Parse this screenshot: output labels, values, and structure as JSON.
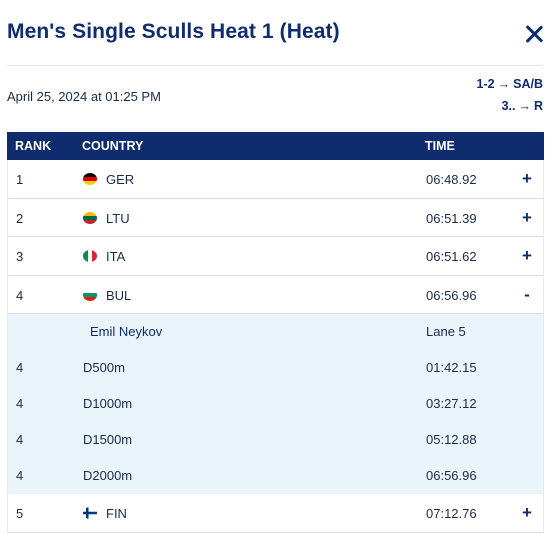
{
  "header": {
    "title": "Men's Single Sculls Heat 1 (Heat)",
    "date": "April 25, 2024 at 01:25 PM",
    "progression": [
      {
        "from": "1-2",
        "arrow": "→",
        "to": "SA/B"
      },
      {
        "from": "3..",
        "arrow": "→",
        "to": "R"
      }
    ]
  },
  "table": {
    "columns": {
      "rank": "RANK",
      "country": "COUNTRY",
      "time": "TIME"
    },
    "rows": [
      {
        "rank": "1",
        "code": "GER",
        "time": "06:48.92",
        "toggle": "+",
        "flag": [
          "#000000",
          "#dd0000",
          "#ffce00"
        ],
        "flag_dir": "h"
      },
      {
        "rank": "2",
        "code": "LTU",
        "time": "06:51.39",
        "toggle": "+",
        "flag": [
          "#fdb913",
          "#006a44",
          "#c1272d"
        ],
        "flag_dir": "h"
      },
      {
        "rank": "3",
        "code": "ITA",
        "time": "06:51.62",
        "toggle": "+",
        "flag": [
          "#009246",
          "#ffffff",
          "#ce2b37"
        ],
        "flag_dir": "v"
      },
      {
        "rank": "4",
        "code": "BUL",
        "time": "06:56.96",
        "toggle": "-",
        "flag": [
          "#ffffff",
          "#00966e",
          "#d62612"
        ],
        "flag_dir": "h"
      }
    ],
    "expanded": {
      "athlete": "Emil Neykov",
      "lane": "Lane 5",
      "splits": [
        {
          "rank": "4",
          "distance": "D500m",
          "time": "01:42.15"
        },
        {
          "rank": "4",
          "distance": "D1000m",
          "time": "03:27.12"
        },
        {
          "rank": "4",
          "distance": "D1500m",
          "time": "05:12.88"
        },
        {
          "rank": "4",
          "distance": "D2000m",
          "time": "06:56.96"
        }
      ]
    },
    "last_row": {
      "rank": "5",
      "code": "FIN",
      "time": "07:12.76",
      "toggle": "+"
    }
  },
  "colors": {
    "primary": "#0f2c6e",
    "detail_bg": "#eaf4fb"
  }
}
